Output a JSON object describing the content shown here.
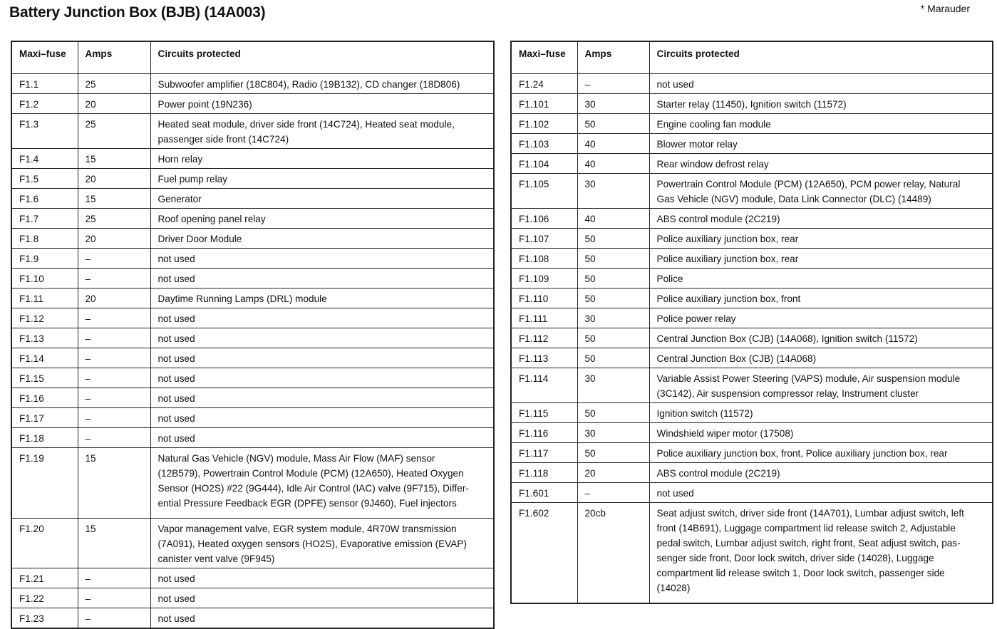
{
  "title": "Battery Junction Box (BJB) (14A003)",
  "note": "* Marauder",
  "headers": {
    "fuse": "Maxi–fuse",
    "amps": "Amps",
    "circuits": "Circuits protected"
  },
  "left_rows": [
    {
      "fuse": "F1.1",
      "amps": "25",
      "circuits": [
        "Subwoofer amplifier (18C804), Radio (19B132), CD changer (18D806)"
      ]
    },
    {
      "fuse": "F1.2",
      "amps": "20",
      "circuits": [
        "Power point (19N236)"
      ]
    },
    {
      "fuse": "F1.3",
      "amps": "25",
      "circuits": [
        "Heated seat module, driver side front (14C724), Heated seat module,",
        "passenger side front (14C724)"
      ]
    },
    {
      "fuse": "F1.4",
      "amps": "15",
      "circuits": [
        "Horn relay"
      ]
    },
    {
      "fuse": "F1.5",
      "amps": "20",
      "circuits": [
        "Fuel pump relay"
      ]
    },
    {
      "fuse": "F1.6",
      "amps": "15",
      "circuits": [
        "Generator"
      ]
    },
    {
      "fuse": "F1.7",
      "amps": "25",
      "circuits": [
        "Roof opening panel relay"
      ]
    },
    {
      "fuse": "F1.8",
      "amps": "20",
      "circuits": [
        "Driver Door Module"
      ]
    },
    {
      "fuse": "F1.9",
      "amps": "–",
      "circuits": [
        "not used"
      ]
    },
    {
      "fuse": "F1.10",
      "amps": "–",
      "circuits": [
        "not used"
      ]
    },
    {
      "fuse": "F1.11",
      "amps": "20",
      "circuits": [
        "Daytime Running Lamps (DRL) module"
      ]
    },
    {
      "fuse": "F1.12",
      "amps": "–",
      "circuits": [
        "not used"
      ]
    },
    {
      "fuse": "F1.13",
      "amps": "–",
      "circuits": [
        "not used"
      ]
    },
    {
      "fuse": "F1.14",
      "amps": "–",
      "circuits": [
        "not used"
      ]
    },
    {
      "fuse": "F1.15",
      "amps": "–",
      "circuits": [
        "not used"
      ]
    },
    {
      "fuse": "F1.16",
      "amps": "–",
      "circuits": [
        "not used"
      ]
    },
    {
      "fuse": "F1.17",
      "amps": "–",
      "circuits": [
        "not used"
      ]
    },
    {
      "fuse": "F1.18",
      "amps": "–",
      "circuits": [
        "not used"
      ]
    },
    {
      "fuse": "F1.19",
      "amps": "15",
      "circuits": [
        "Natural Gas Vehicle (NGV) module, Mass Air Flow (MAF) sensor",
        "(12B579), Powertrain Control Module (PCM) (12A650), Heated Oxygen",
        "Sensor (HO2S) #22 (9G444), Idle Air Control (IAC) valve (9F715), Differ-",
        "ential Pressure Feedback EGR (DPFE) sensor (9J460), Fuel injectors"
      ],
      "tall": true
    },
    {
      "fuse": "F1.20",
      "amps": "15",
      "circuits": [
        "Vapor management valve, EGR system module, 4R70W transmission",
        "(7A091), Heated oxygen sensors (HO2S), Evaporative emission (EVAP)",
        "canister vent valve (9F945)"
      ]
    },
    {
      "fuse": "F1.21",
      "amps": "–",
      "circuits": [
        "not used"
      ]
    },
    {
      "fuse": "F1.22",
      "amps": "–",
      "circuits": [
        "not used"
      ]
    },
    {
      "fuse": "F1.23",
      "amps": "–",
      "circuits": [
        "not used"
      ]
    }
  ],
  "right_rows": [
    {
      "fuse": "F1.24",
      "amps": "–",
      "circuits": [
        "not used"
      ]
    },
    {
      "fuse": "F1.101",
      "amps": "30",
      "circuits": [
        "Starter relay (11450), Ignition switch (11572)"
      ]
    },
    {
      "fuse": "F1.102",
      "amps": "50",
      "circuits": [
        "Engine cooling fan module"
      ]
    },
    {
      "fuse": "F1.103",
      "amps": "40",
      "circuits": [
        "Blower motor relay"
      ]
    },
    {
      "fuse": "F1.104",
      "amps": "40",
      "circuits": [
        "Rear window defrost relay"
      ]
    },
    {
      "fuse": "F1.105",
      "amps": "30",
      "circuits": [
        "Powertrain Control Module (PCM) (12A650), PCM power relay, Natural",
        "Gas Vehicle (NGV) module, Data Link Connector (DLC) (14489)"
      ]
    },
    {
      "fuse": "F1.106",
      "amps": "40",
      "circuits": [
        "ABS control module (2C219)"
      ]
    },
    {
      "fuse": "F1.107",
      "amps": "50",
      "circuits": [
        "Police auxiliary junction box, rear"
      ]
    },
    {
      "fuse": "F1.108",
      "amps": "50",
      "circuits": [
        "Police auxiliary junction box, rear"
      ]
    },
    {
      "fuse": "F1.109",
      "amps": "50",
      "circuits": [
        "Police"
      ]
    },
    {
      "fuse": "F1.110",
      "amps": "50",
      "circuits": [
        "Police auxiliary junction box, front"
      ]
    },
    {
      "fuse": "F1.111",
      "amps": "30",
      "circuits": [
        "Police power relay"
      ]
    },
    {
      "fuse": "F1.112",
      "amps": "50",
      "circuits": [
        "Central Junction Box (CJB) (14A068), Ignition switch (11572)"
      ]
    },
    {
      "fuse": "F1.113",
      "amps": "50",
      "circuits": [
        "Central Junction Box (CJB) (14A068)"
      ]
    },
    {
      "fuse": "F1.114",
      "amps": "30",
      "circuits": [
        "Variable Assist Power Steering (VAPS) module, Air suspension module",
        "(3C142), Air suspension compressor relay, Instrument cluster"
      ]
    },
    {
      "fuse": "F1.115",
      "amps": "50",
      "circuits": [
        "Ignition switch (11572)"
      ]
    },
    {
      "fuse": "F1.116",
      "amps": "30",
      "circuits": [
        "Windshield wiper motor (17508)"
      ]
    },
    {
      "fuse": "F1.117",
      "amps": "50",
      "circuits": [
        "Police auxiliary junction box, front, Police auxiliary junction box, rear"
      ]
    },
    {
      "fuse": "F1.118",
      "amps": "20",
      "circuits": [
        "ABS control module (2C219)"
      ]
    },
    {
      "fuse": "F1.601",
      "amps": "–",
      "circuits": [
        "not used"
      ]
    },
    {
      "fuse": "F1.602",
      "amps": "20cb",
      "circuits": [
        "Seat adjust switch, driver side front (14A701), Lumbar adjust switch, left",
        "front (14B691), Luggage compartment lid release switch 2, Adjustable",
        "pedal switch, Lumbar adjust switch, right front, Seat adjust switch, pas-",
        "senger side front, Door lock switch, driver side (14028), Luggage",
        "compartment lid release switch 1, Door lock switch, passenger side",
        "(14028)"
      ],
      "tall": true
    }
  ]
}
